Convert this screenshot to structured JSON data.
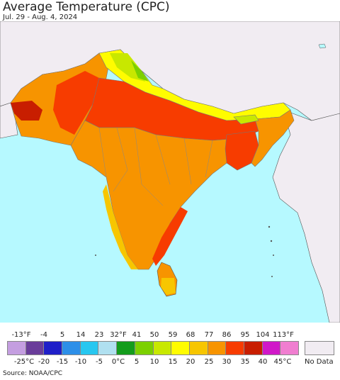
{
  "title": "Average Temperature (CPC)",
  "subtitle": "Jul. 29 - Aug. 4, 2024",
  "source": "Source: NOAA/CPC",
  "legend": {
    "fahrenheit_labels": [
      "-13°F",
      "-4",
      "5",
      "14",
      "23",
      "32°F",
      "41",
      "50",
      "59",
      "68",
      "77",
      "86",
      "95",
      "104",
      "113°F"
    ],
    "celsius_labels": [
      "-25°C",
      "-20",
      "-15",
      "-10",
      "-5",
      "0°C",
      "5",
      "10",
      "15",
      "20",
      "25",
      "30",
      "35",
      "40",
      "45°C"
    ],
    "colors": [
      "#c49ee0",
      "#6a3d9a",
      "#1f1fc8",
      "#2d8fe8",
      "#27c7f0",
      "#b0e0f0",
      "#139c1c",
      "#7cd000",
      "#c8e800",
      "#fffc00",
      "#f7c600",
      "#f79400",
      "#f73c00",
      "#c81e00",
      "#d018c8",
      "#f07ed0"
    ],
    "no_data_label": "No Data",
    "no_data_color": "#f1ecf2"
  },
  "map": {
    "ocean_color": "#b6f9ff",
    "land_nodata_color": "#f1ecf2"
  }
}
